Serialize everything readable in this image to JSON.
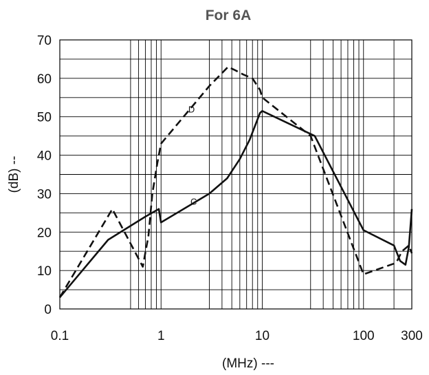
{
  "chart_data": {
    "type": "line",
    "title": "For 6A",
    "xlabel": "(MHz) ---",
    "ylabel": "(dB) --",
    "x_scale": "log",
    "xlim": [
      0.1,
      300
    ],
    "ylim": [
      0,
      70
    ],
    "x_ticks": [
      0.1,
      1,
      10,
      100,
      300
    ],
    "x_tick_labels": [
      "0.1",
      "1",
      "10",
      "100",
      "300"
    ],
    "y_ticks": [
      0,
      10,
      20,
      30,
      40,
      50,
      60,
      70
    ],
    "y_tick_labels": [
      "0",
      "10",
      "20",
      "30",
      "40",
      "50",
      "60",
      "70"
    ],
    "y_minor_ticks": [
      5,
      15,
      25,
      35,
      45,
      55,
      65
    ],
    "x_minor_ticks": [
      0.5,
      0.6,
      0.7,
      0.8,
      0.9,
      3,
      4,
      5,
      6,
      7,
      8,
      9,
      30,
      40,
      50,
      60,
      70,
      80,
      90,
      200
    ],
    "grid": true,
    "series": [
      {
        "name": "D",
        "style": "dashed",
        "x": [
          0.1,
          0.33,
          0.66,
          0.75,
          0.82,
          0.92,
          1,
          3,
          4.6,
          5.5,
          6.5,
          8,
          9.5,
          10,
          30,
          100,
          210,
          240,
          280,
          300
        ],
        "y": [
          3,
          26,
          11,
          19,
          30,
          38,
          43,
          58,
          63,
          62,
          61,
          60,
          57,
          55,
          45,
          9,
          12,
          15,
          16.5,
          14.5
        ]
      },
      {
        "name": "C",
        "style": "solid",
        "x": [
          0.1,
          0.3,
          0.7,
          0.95,
          1,
          3,
          4.5,
          6,
          7.5,
          9.5,
          10,
          33,
          100,
          200,
          230,
          260,
          280,
          300
        ],
        "y": [
          3,
          18,
          24,
          26,
          22.5,
          30,
          34,
          39,
          44,
          51,
          51.5,
          45,
          20.5,
          16.5,
          12.5,
          11.5,
          16,
          26
        ]
      }
    ],
    "annotations": [
      "D",
      "C"
    ]
  }
}
